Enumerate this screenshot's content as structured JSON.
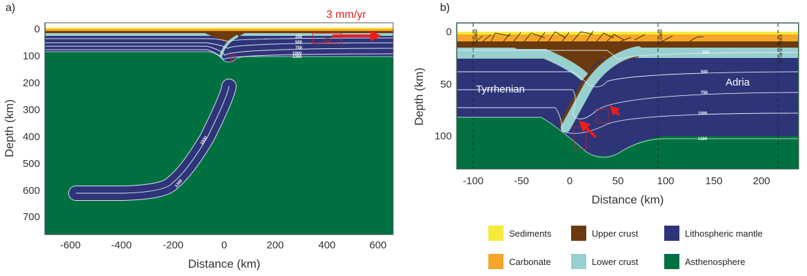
{
  "panel_a": {
    "label": "a)",
    "velocity_label": "3 mm/yr",
    "xlabel": "Distance (km)",
    "ylabel": "Depth (km)",
    "xticks": [
      "-600",
      "-400",
      "-200",
      "0",
      "200",
      "400",
      "600"
    ],
    "yticks": [
      "0",
      "100",
      "200",
      "300",
      "400",
      "500",
      "600",
      "700"
    ],
    "contours": [
      "250",
      "500",
      "750",
      "1000",
      "1300"
    ],
    "slab_contours": [
      "1000",
      "1300"
    ]
  },
  "panel_b": {
    "label": "b)",
    "xlabel": "Distance (km)",
    "ylabel": "Depth (km)",
    "xticks": [
      "-100",
      "-50",
      "0",
      "50",
      "100",
      "150",
      "200"
    ],
    "yticks": [
      "0",
      "50",
      "100"
    ],
    "contours": [
      "250",
      "500",
      "750",
      "1000",
      "1300"
    ],
    "markers": [
      "Coast",
      "Coast",
      "Dinaric front"
    ],
    "regions": [
      "Tyrrhenian",
      "Adria"
    ]
  },
  "legend": [
    {
      "label": "Sediments",
      "color": "#f5ea3a"
    },
    {
      "label": "Carbonate",
      "color": "#f5a52a"
    },
    {
      "label": "Upper crust",
      "color": "#6b3a0e"
    },
    {
      "label": "Lower crust",
      "color": "#98cfcf"
    },
    {
      "label": "Lithospheric mantle",
      "color": "#2e3478"
    },
    {
      "label": "Asthenosphere",
      "color": "#007040"
    }
  ],
  "colors": {
    "arrow": "#ee1c1c",
    "contour": "#ffffff"
  }
}
